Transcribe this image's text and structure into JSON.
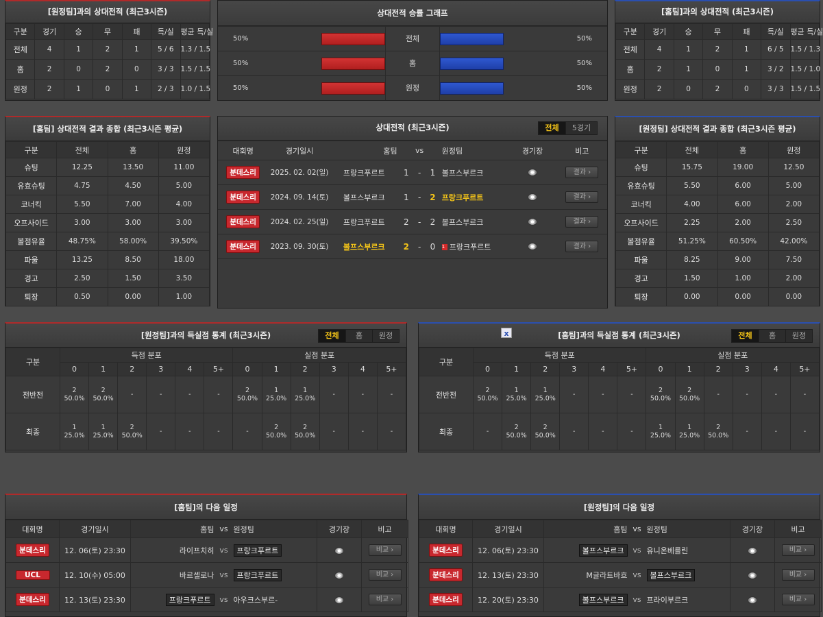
{
  "h2h_away": {
    "title": "[원정팀]과의 상대전적 (최근3시즌)",
    "headers": [
      "구분",
      "경기",
      "승",
      "무",
      "패",
      "득/실",
      "평균 득/실"
    ],
    "rows": [
      [
        "전체",
        "4",
        "1",
        "2",
        "1",
        "5 / 6",
        "1.3 / 1.5"
      ],
      [
        "홈",
        "2",
        "0",
        "2",
        "0",
        "3 / 3",
        "1.5 / 1.5"
      ],
      [
        "원정",
        "2",
        "1",
        "0",
        "1",
        "2 / 3",
        "1.0 / 1.5"
      ]
    ]
  },
  "graph": {
    "title": "상대전적 승률 그래프",
    "rows": [
      {
        "label": "전체",
        "left": "50%",
        "right": "50%",
        "left_value": 50,
        "right_value": 50
      },
      {
        "label": "홈",
        "left": "50%",
        "right": "50%",
        "left_value": 50,
        "right_value": 50
      },
      {
        "label": "원정",
        "left": "50%",
        "right": "50%",
        "left_value": 50,
        "right_value": 50
      }
    ]
  },
  "h2h_home": {
    "title": "[홈팀]과의 상대전적 (최근3시즌)",
    "headers": [
      "구분",
      "경기",
      "승",
      "무",
      "패",
      "득/실",
      "평균 득/실"
    ],
    "rows": [
      [
        "전체",
        "4",
        "1",
        "2",
        "1",
        "6 / 5",
        "1.5 / 1.3"
      ],
      [
        "홈",
        "2",
        "1",
        "0",
        "1",
        "3 / 2",
        "1.5 / 1.0"
      ],
      [
        "원정",
        "2",
        "0",
        "2",
        "0",
        "3 / 3",
        "1.5 / 1.5"
      ]
    ]
  },
  "summary_home": {
    "title": "[홈팀] 상대전적 결과 종합 (최근3시즌 평균)",
    "headers": [
      "구분",
      "전체",
      "홈",
      "원정"
    ],
    "rows": [
      [
        "슈팅",
        "12.25",
        "13.50",
        "11.00"
      ],
      [
        "유효슈팅",
        "4.75",
        "4.50",
        "5.00"
      ],
      [
        "코너킥",
        "5.50",
        "7.00",
        "4.00"
      ],
      [
        "오프사이드",
        "3.00",
        "3.00",
        "3.00"
      ],
      [
        "볼점유율",
        "48.75%",
        "58.00%",
        "39.50%"
      ],
      [
        "파울",
        "13.25",
        "8.50",
        "18.00"
      ],
      [
        "경고",
        "2.50",
        "1.50",
        "3.50"
      ],
      [
        "퇴장",
        "0.50",
        "0.00",
        "1.00"
      ]
    ]
  },
  "summary_away": {
    "title": "[원정팀] 상대전적 결과 종합 (최근3시즌 평균)",
    "headers": [
      "구분",
      "전체",
      "홈",
      "원정"
    ],
    "rows": [
      [
        "슈팅",
        "15.75",
        "19.00",
        "12.50"
      ],
      [
        "유효슈팅",
        "5.50",
        "6.00",
        "5.00"
      ],
      [
        "코너킥",
        "4.00",
        "6.00",
        "2.00"
      ],
      [
        "오프사이드",
        "2.25",
        "2.00",
        "2.50"
      ],
      [
        "볼점유율",
        "51.25%",
        "60.50%",
        "42.00%"
      ],
      [
        "파울",
        "8.25",
        "9.00",
        "7.50"
      ],
      [
        "경고",
        "1.50",
        "1.00",
        "2.00"
      ],
      [
        "퇴장",
        "0.00",
        "0.00",
        "0.00"
      ]
    ]
  },
  "matches": {
    "title": "상대전적 (최근3시즌)",
    "tabs": [
      "전체",
      "5경기"
    ],
    "headers": [
      "대회명",
      "경기일시",
      "홈팀",
      "vs",
      "원정팀",
      "경기장",
      "비고"
    ],
    "rows": [
      {
        "comp": "분데스리",
        "date": "2025. 02. 02(일)",
        "home": "프랑크푸르트",
        "hs": "1",
        "sep": "-",
        "as": "1",
        "away": "볼프스부르크",
        "btn": "결과",
        "hl": "none",
        "red": ""
      },
      {
        "comp": "분데스리",
        "date": "2024. 09. 14(토)",
        "home": "볼프스부르크",
        "hs": "1",
        "sep": "-",
        "as": "2",
        "away": "프랑크푸르트",
        "btn": "결과",
        "hl": "away",
        "red": ""
      },
      {
        "comp": "분데스리",
        "date": "2024. 02. 25(일)",
        "home": "프랑크푸르트",
        "hs": "2",
        "sep": "-",
        "as": "2",
        "away": "볼프스부르크",
        "btn": "결과",
        "hl": "none",
        "red": ""
      },
      {
        "comp": "분데스리",
        "date": "2023. 09. 30(토)",
        "home": "볼프스부르크",
        "hs": "2",
        "sep": "-",
        "as": "0",
        "away": "프랑크푸르트",
        "btn": "결과",
        "hl": "home",
        "red": "1"
      }
    ]
  },
  "goals_away": {
    "title": "[원정팀]과의 득실점 통계 (최근3시즌)",
    "tabs": [
      "전체",
      "홈",
      "원정"
    ],
    "h_gubun": "구분",
    "h_scored": "득점 분포",
    "h_conceded": "실점 분포",
    "cols": [
      "0",
      "1",
      "2",
      "3",
      "4",
      "5+"
    ],
    "rows": [
      {
        "label": "전반전",
        "scored": [
          [
            "2",
            "50.0%"
          ],
          [
            "2",
            "50.0%"
          ],
          [
            "-",
            ""
          ],
          [
            "-",
            ""
          ],
          [
            "-",
            ""
          ],
          [
            "-",
            ""
          ]
        ],
        "conceded": [
          [
            "2",
            "50.0%"
          ],
          [
            "1",
            "25.0%"
          ],
          [
            "1",
            "25.0%"
          ],
          [
            "-",
            ""
          ],
          [
            "-",
            ""
          ],
          [
            "-",
            ""
          ]
        ]
      },
      {
        "label": "최종",
        "scored": [
          [
            "1",
            "25.0%"
          ],
          [
            "1",
            "25.0%"
          ],
          [
            "2",
            "50.0%"
          ],
          [
            "-",
            ""
          ],
          [
            "-",
            ""
          ],
          [
            "-",
            ""
          ]
        ],
        "conceded": [
          [
            "-",
            ""
          ],
          [
            "2",
            "50.0%"
          ],
          [
            "2",
            "50.0%"
          ],
          [
            "-",
            ""
          ],
          [
            "-",
            ""
          ],
          [
            "-",
            ""
          ]
        ]
      }
    ]
  },
  "goals_home": {
    "title": "[홈팀]과의 득실점 통계 (최근3시즌)",
    "tabs": [
      "전체",
      "홈",
      "원정"
    ],
    "h_gubun": "구분",
    "h_scored": "득점 분포",
    "h_conceded": "실점 분포",
    "cols": [
      "0",
      "1",
      "2",
      "3",
      "4",
      "5+"
    ],
    "rows": [
      {
        "label": "전반전",
        "scored": [
          [
            "2",
            "50.0%"
          ],
          [
            "1",
            "25.0%"
          ],
          [
            "1",
            "25.0%"
          ],
          [
            "-",
            ""
          ],
          [
            "-",
            ""
          ],
          [
            "-",
            ""
          ]
        ],
        "conceded": [
          [
            "2",
            "50.0%"
          ],
          [
            "2",
            "50.0%"
          ],
          [
            "-",
            ""
          ],
          [
            "-",
            ""
          ],
          [
            "-",
            ""
          ],
          [
            "-",
            ""
          ]
        ]
      },
      {
        "label": "최종",
        "scored": [
          [
            "-",
            ""
          ],
          [
            "2",
            "50.0%"
          ],
          [
            "2",
            "50.0%"
          ],
          [
            "-",
            ""
          ],
          [
            "-",
            ""
          ],
          [
            "-",
            ""
          ]
        ],
        "conceded": [
          [
            "1",
            "25.0%"
          ],
          [
            "1",
            "25.0%"
          ],
          [
            "2",
            "50.0%"
          ],
          [
            "-",
            ""
          ],
          [
            "-",
            ""
          ],
          [
            "-",
            ""
          ]
        ]
      }
    ]
  },
  "next_home": {
    "title": "[홈팀]의 다음 일정",
    "headers": [
      "대회명",
      "경기일시",
      "홈팀",
      "vs",
      "원정팀",
      "경기장",
      "비고"
    ],
    "rows": [
      {
        "comp": "분데스리",
        "ucl": false,
        "date": "12. 06(토) 23:30",
        "home": "라이프치히",
        "vs": "vs",
        "away": "프랑크푸르트",
        "tag": "away",
        "btn": "비교"
      },
      {
        "comp": "UCL",
        "ucl": true,
        "date": "12. 10(수) 05:00",
        "home": "바르셀로나",
        "vs": "vs",
        "away": "프랑크푸르트",
        "tag": "away",
        "btn": "비교"
      },
      {
        "comp": "분데스리",
        "ucl": false,
        "date": "12. 13(토) 23:30",
        "home": "프랑크푸르트",
        "vs": "vs",
        "away": "아우크스부르-",
        "tag": "home",
        "btn": "비교"
      }
    ]
  },
  "next_away": {
    "title": "[원정팀]의 다음 일정",
    "headers": [
      "대회명",
      "경기일시",
      "홈팀",
      "vs",
      "원정팀",
      "경기장",
      "비고"
    ],
    "rows": [
      {
        "comp": "분데스리",
        "ucl": false,
        "date": "12. 06(토) 23:30",
        "home": "볼프스부르크",
        "vs": "vs",
        "away": "유니온베를린",
        "tag": "home",
        "btn": "비교"
      },
      {
        "comp": "분데스리",
        "ucl": false,
        "date": "12. 13(토) 23:30",
        "home": "M글라트바흐",
        "vs": "vs",
        "away": "볼프스부르크",
        "tag": "away",
        "btn": "비교"
      },
      {
        "comp": "분데스리",
        "ucl": false,
        "date": "12. 20(토) 23:30",
        "home": "볼프스부르크",
        "vs": "vs",
        "away": "프라이부르크",
        "tag": "home",
        "btn": "비교"
      }
    ]
  },
  "colors": {
    "red": "#c8282e",
    "blue": "#2a4fb0",
    "highlight": "#f5c518"
  }
}
